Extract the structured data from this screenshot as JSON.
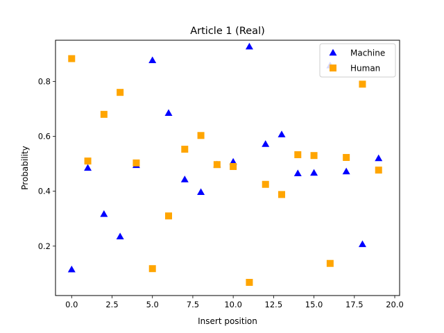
{
  "chart_data": {
    "type": "scatter",
    "title": "Article 1 (Real)",
    "xlabel": "Insert position",
    "ylabel": "Probability",
    "xlim": [
      -1,
      20.3
    ],
    "ylim": [
      0.02,
      0.95
    ],
    "xticks": [
      0.0,
      2.5,
      5.0,
      7.5,
      10.0,
      12.5,
      15.0,
      17.5,
      20.0
    ],
    "xtick_labels": [
      "0.0",
      "2.5",
      "5.0",
      "7.5",
      "10.0",
      "12.5",
      "15.0",
      "17.5",
      "20.0"
    ],
    "yticks": [
      0.2,
      0.4,
      0.6,
      0.8
    ],
    "ytick_labels": [
      "0.2",
      "0.4",
      "0.6",
      "0.8"
    ],
    "grid": false,
    "legend_position": "top-right",
    "series": [
      {
        "name": "Machine",
        "marker": "triangle",
        "color": "#0000ff",
        "x": [
          0,
          1,
          2,
          3,
          4,
          5,
          6,
          7,
          8,
          9,
          10,
          11,
          12,
          13,
          14,
          15,
          16,
          17,
          18,
          19
        ],
        "y": [
          0.115,
          0.485,
          0.317,
          0.235,
          0.495,
          0.877,
          0.685,
          0.443,
          0.397,
          0.497,
          0.507,
          0.927,
          0.572,
          0.607,
          0.465,
          0.467,
          0.858,
          0.472,
          0.207,
          0.52
        ]
      },
      {
        "name": "Human",
        "marker": "square",
        "color": "#ffa500",
        "x": [
          0,
          1,
          2,
          3,
          4,
          5,
          6,
          7,
          8,
          9,
          10,
          11,
          12,
          13,
          14,
          15,
          16,
          17,
          18,
          19
        ],
        "y": [
          0.883,
          0.51,
          0.68,
          0.76,
          0.503,
          0.118,
          0.31,
          0.553,
          0.603,
          0.497,
          0.49,
          0.068,
          0.425,
          0.388,
          0.533,
          0.53,
          0.137,
          0.523,
          0.79,
          0.477
        ]
      }
    ]
  }
}
